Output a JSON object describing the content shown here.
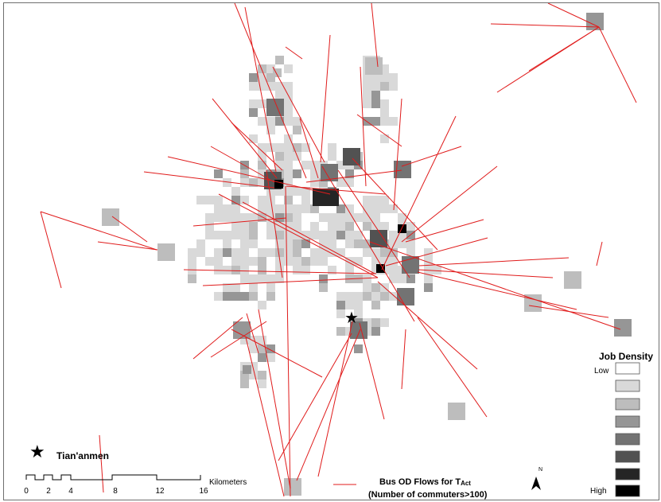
{
  "legend": {
    "title": "Job Density",
    "low_label": "Low",
    "high_label": "High",
    "classes": [
      "#ffffff",
      "#d9d9d9",
      "#bdbdbd",
      "#969696",
      "#737373",
      "#525252",
      "#252525",
      "#000000"
    ]
  },
  "flows": {
    "line_color": "#e01b1b",
    "title_main": "Bus OD Flows for T",
    "title_sub": "Act",
    "subtitle": "(Number of commuters>100)"
  },
  "landmark": {
    "label": "Tian'anmen",
    "symbol": "★"
  },
  "scale_bar": {
    "unit": "Kilometers",
    "ticks": [
      "0",
      "2",
      "4",
      "8",
      "12",
      "16"
    ]
  },
  "north_arrow": {
    "label": "N"
  }
}
